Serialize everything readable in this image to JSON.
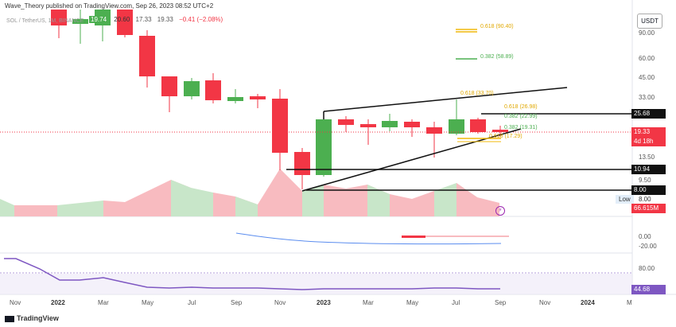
{
  "header": {
    "publisher_line": "Wave_Theory published on TradingView.com, Sep 26, 2023 08:52 UTC+2",
    "symbol": "SOL / TetherUS, 1M, BINANCE",
    "ohlc": [
      "19.74",
      "20.60",
      "17.33",
      "19.33",
      "−0.41 (−2.08%)"
    ],
    "currency_button": "USDT"
  },
  "price_axis": {
    "ticks": [
      "90.00",
      "60.00",
      "45.00",
      "33.00",
      "13.50",
      "9.50"
    ],
    "tags": {
      "resistance": "25.68",
      "current_price": "19.33",
      "countdown": "4d 18h",
      "support": "10.94",
      "low_line": "8.00",
      "low_label": "Low",
      "low_value": "8.00",
      "volume": "66.615M"
    }
  },
  "fib_labels": [
    "0.618 (90.40)",
    "0.382 (58.89)",
    "0.618 (33.70)",
    "0.618 (26.98)",
    "0.382 (22.99)",
    "0.382 (19.31)",
    "0.618 (17.29)"
  ],
  "macd_axis": [
    "0.00",
    "-20.00"
  ],
  "rsi_axis": [
    "80.00"
  ],
  "rsi_value": "44.68",
  "time_axis": [
    "Nov",
    "2022",
    "Mar",
    "May",
    "Jul",
    "Sep",
    "Nov",
    "2023",
    "Mar",
    "May",
    "Jul",
    "Sep",
    "Nov",
    "2024",
    "M"
  ],
  "footer": "TradingView",
  "colors": {
    "bull": "#4caf50",
    "bear": "#f23645",
    "fib": "#f0b90b",
    "green": "#4caf50",
    "rsi": "#7e57c2"
  }
}
